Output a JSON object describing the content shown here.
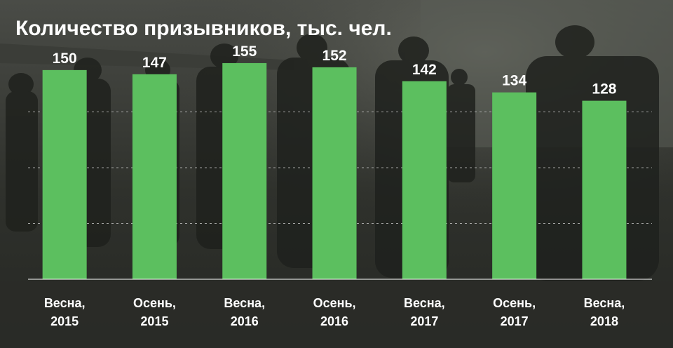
{
  "chart_data": {
    "type": "bar",
    "title": "Количество призывников, тыс. чел.",
    "categories": [
      [
        "Весна,",
        "2015"
      ],
      [
        "Осень,",
        "2015"
      ],
      [
        "Весна,",
        "2016"
      ],
      [
        "Осень,",
        "2016"
      ],
      [
        "Весна,",
        "2017"
      ],
      [
        "Осень,",
        "2017"
      ],
      [
        "Весна,",
        "2018"
      ]
    ],
    "values": [
      150,
      147,
      155,
      152,
      142,
      134,
      128
    ],
    "ylim": [
      0,
      160
    ],
    "grid": true,
    "grid_style": "dashed",
    "bar_color": "#5cbf5f",
    "text_color": "#ffffff"
  }
}
